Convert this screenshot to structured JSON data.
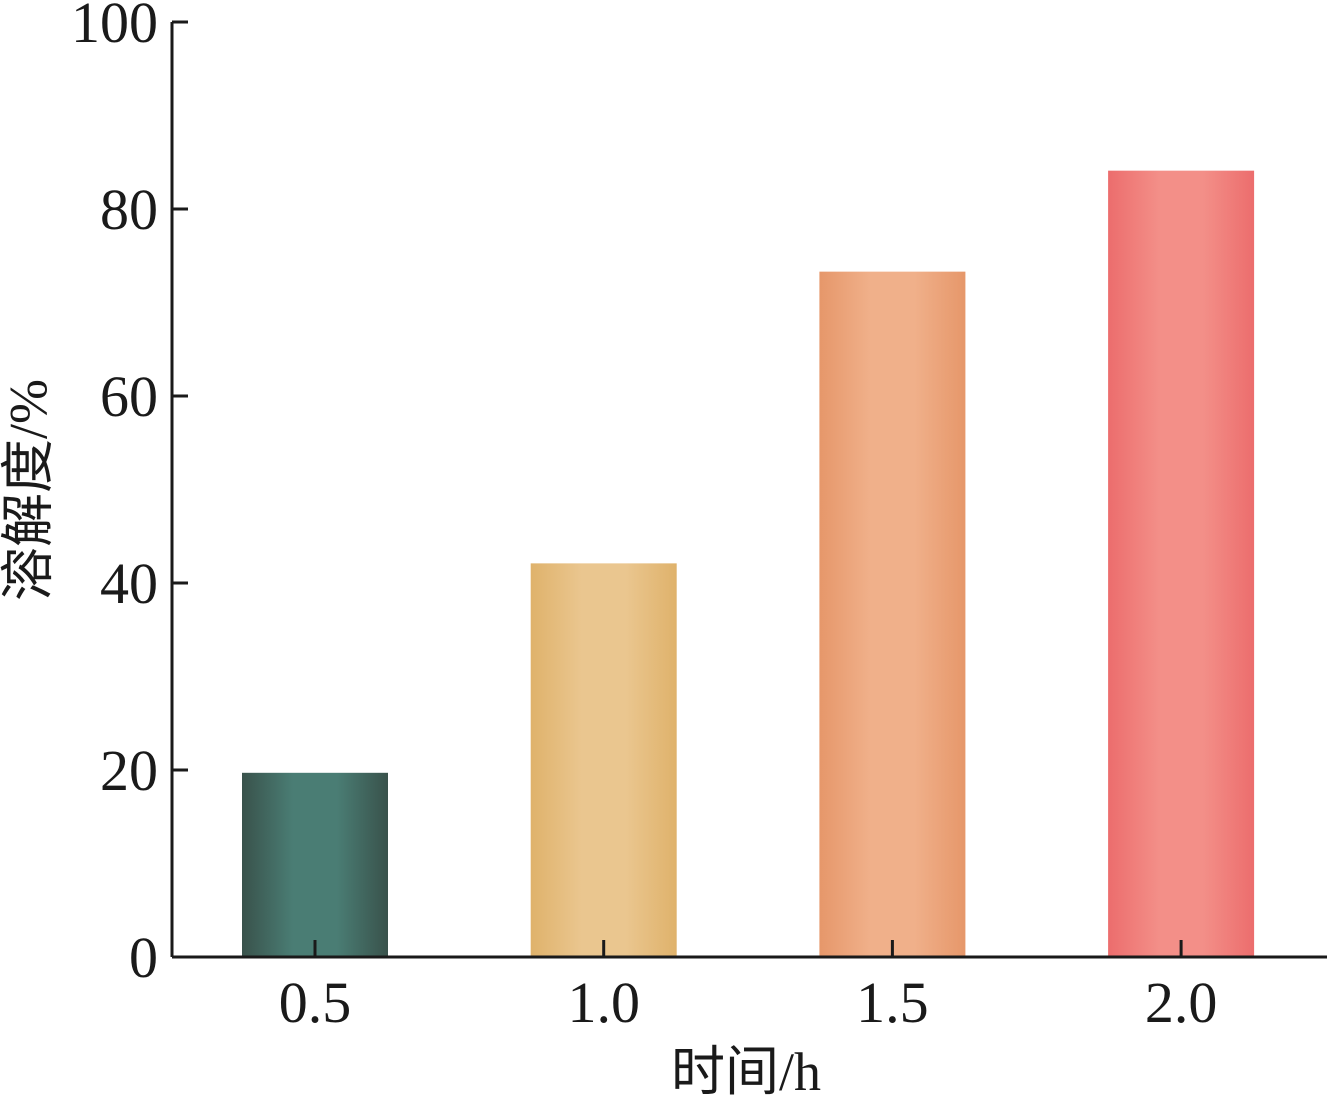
{
  "chart_data": {
    "type": "bar",
    "categories": [
      "0.5",
      "1.0",
      "1.5",
      "2.0"
    ],
    "values": [
      19.7,
      42.1,
      73.3,
      84.1
    ],
    "ylim": [
      0,
      100
    ],
    "yticks": [
      "0",
      "20",
      "40",
      "60",
      "80",
      "100"
    ],
    "xlabel": "时间/h",
    "ylabel": "溶解度/%",
    "title": "",
    "grid": false,
    "legend": "none",
    "bar_colors": [
      {
        "edge": "#39524b",
        "mid": "#4a7d74"
      },
      {
        "edge": "#dfb26b",
        "mid": "#eac68f"
      },
      {
        "edge": "#e6976a",
        "mid": "#f0b08a"
      },
      {
        "edge": "#ec6d6d",
        "mid": "#f38f88"
      }
    ]
  }
}
